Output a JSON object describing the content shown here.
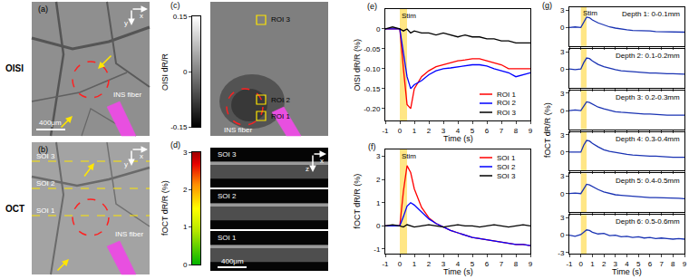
{
  "images": {
    "a": {
      "label": "(a)",
      "row_label": "OISI",
      "fiber": "INS fiber",
      "scale_bar": "400μm",
      "axes": [
        "x",
        "y"
      ]
    },
    "b": {
      "label": "(b)",
      "row_label": "OCT",
      "fiber": "INS fiber",
      "axes": [
        "x",
        "y"
      ],
      "lines": [
        "SOI 1",
        "SOI 2",
        "SOI 3"
      ]
    },
    "c": {
      "label": "(c)",
      "fiber": "INS fiber",
      "rois": [
        "ROI 1",
        "ROI 2",
        "ROI 3"
      ],
      "colorbar": {
        "title": "OISI dR/R",
        "range": [
          -0.15,
          0.15
        ],
        "ticks": [
          -0.15,
          0,
          0.15
        ]
      }
    },
    "d": {
      "label": "(d)",
      "sections": [
        "SOI 3",
        "SOI 2",
        "SOI 1"
      ],
      "scale_bar": "400μm",
      "axes": [
        "x",
        "z"
      ],
      "colorbar": {
        "title": "fOCT dR/R (%)",
        "range": [
          0,
          3
        ],
        "ticks": [
          0,
          1,
          2,
          3
        ]
      }
    }
  },
  "chart_data": [
    {
      "type": "line",
      "title": "(e)",
      "xlabel": "Time (s)",
      "ylabel": "OISI dR/R (%)",
      "x": [
        -1,
        -0.5,
        0,
        0.25,
        0.5,
        0.75,
        1,
        1.5,
        2,
        2.5,
        3,
        3.5,
        4,
        4.5,
        5,
        5.5,
        6,
        6.5,
        7,
        7.5,
        8,
        8.5,
        9
      ],
      "xlim": [
        -1,
        9
      ],
      "xticks": [
        -1,
        0,
        1,
        2,
        3,
        4,
        5,
        6,
        7,
        8,
        9
      ],
      "ylim": [
        -0.23,
        0.05
      ],
      "yticks": [
        0,
        -0.05,
        {
          "value": -0.1,
          "label": "-0.10"
        },
        -0.15,
        {
          "value": -0.2,
          "label": "-0.20"
        }
      ],
      "legend": "lower right",
      "annotations": [
        {
          "text": "Stim",
          "x": [
            0,
            0.5
          ]
        }
      ],
      "series": [
        {
          "name": "ROI 1",
          "color": "#ff0000",
          "values": [
            0,
            0,
            0,
            -0.1,
            -0.19,
            -0.2,
            -0.15,
            -0.12,
            -0.105,
            -0.095,
            -0.09,
            -0.085,
            -0.08,
            -0.078,
            -0.075,
            -0.075,
            -0.08,
            -0.085,
            -0.09,
            -0.1,
            -0.1,
            -0.1,
            -0.1
          ]
        },
        {
          "name": "ROI 2",
          "color": "#0000ff",
          "values": [
            0,
            0,
            0,
            -0.06,
            -0.12,
            -0.15,
            -0.14,
            -0.13,
            -0.115,
            -0.105,
            -0.1,
            -0.098,
            -0.095,
            -0.092,
            -0.09,
            -0.09,
            -0.093,
            -0.1,
            -0.105,
            -0.11,
            -0.12,
            -0.115,
            -0.11
          ]
        },
        {
          "name": "ROI 3",
          "color": "#000000",
          "values": [
            0,
            0.005,
            0,
            -0.005,
            0,
            -0.01,
            -0.005,
            -0.01,
            -0.01,
            -0.015,
            -0.01,
            -0.015,
            -0.02,
            -0.015,
            -0.02,
            -0.02,
            -0.025,
            -0.025,
            -0.03,
            -0.03,
            -0.035,
            -0.035,
            -0.035
          ]
        }
      ]
    },
    {
      "type": "line",
      "title": "(f)",
      "xlabel": "Time (s)",
      "ylabel": "fOCT dR/R (%)",
      "x": [
        -1,
        -0.5,
        0,
        0.25,
        0.5,
        0.75,
        1,
        1.5,
        2,
        2.5,
        3,
        3.5,
        4,
        4.5,
        5,
        5.5,
        6,
        6.5,
        7,
        7.5,
        8,
        8.5,
        9
      ],
      "xlim": [
        -1,
        9
      ],
      "xticks": [
        -1,
        0,
        1,
        2,
        3,
        4,
        5,
        6,
        7,
        8,
        9
      ],
      "ylim": [
        -1.2,
        3.3
      ],
      "yticks": [
        -1,
        0,
        1,
        2,
        3
      ],
      "legend": "upper right",
      "annotations": [
        {
          "text": "Stim",
          "x": [
            0,
            0.5
          ]
        }
      ],
      "series": [
        {
          "name": "SOI 1",
          "color": "#ff0000",
          "values": [
            0,
            0,
            0,
            1.5,
            2.6,
            2.3,
            1.6,
            0.8,
            0.35,
            0.1,
            -0.05,
            -0.2,
            -0.3,
            -0.4,
            -0.5,
            -0.55,
            -0.6,
            -0.65,
            -0.7,
            -0.75,
            -0.8,
            -0.8,
            -0.85
          ]
        },
        {
          "name": "SOI 2",
          "color": "#0000ff",
          "values": [
            0,
            0,
            0,
            0.4,
            0.85,
            1.0,
            0.9,
            0.6,
            0.3,
            0.1,
            -0.05,
            -0.2,
            -0.3,
            -0.4,
            -0.5,
            -0.55,
            -0.6,
            -0.65,
            -0.7,
            -0.75,
            -0.8,
            -0.8,
            -0.85
          ]
        },
        {
          "name": "SOI 3",
          "color": "#000000",
          "values": [
            0,
            0.05,
            0,
            -0.05,
            0.05,
            0,
            -0.05,
            0,
            0.05,
            0,
            -0.05,
            0,
            0.05,
            0,
            0,
            -0.05,
            0,
            0.05,
            0,
            -0.05,
            0,
            0.05,
            0
          ]
        }
      ]
    },
    {
      "type": "small_multiples",
      "title": "(g)",
      "xlabel": "Time (s)",
      "ylabel": "fOCT dR/R (%)",
      "x": [
        -1,
        -0.5,
        0,
        0.25,
        0.5,
        0.75,
        1,
        1.5,
        2,
        2.5,
        3,
        3.5,
        4,
        4.5,
        5,
        5.5,
        6,
        6.5,
        7,
        7.5,
        8,
        8.5,
        9
      ],
      "xlim": [
        -1,
        9
      ],
      "xticks": [
        -1,
        0,
        1,
        2,
        3,
        4,
        5,
        6,
        7,
        8,
        9
      ],
      "ylim": [
        -3.2,
        3.5
      ],
      "annotations": [
        {
          "text": "Stim",
          "x": [
            0,
            0.5
          ]
        }
      ],
      "series": [
        {
          "name": "Depth 1: 0-0.1mm",
          "color": "#1a33b3",
          "yticks": [
            0,
            3
          ],
          "values": [
            0,
            0.1,
            0,
            1.0,
            1.8,
            1.7,
            1.3,
            0.8,
            0.4,
            0.1,
            -0.1,
            -0.3,
            -0.4,
            -0.5,
            -0.5,
            -0.6,
            -0.6,
            -0.7,
            -0.7,
            -0.7,
            -0.8,
            -0.8,
            -0.8
          ]
        },
        {
          "name": "Depth 2: 0.1-0.2mm",
          "color": "#1a33b3",
          "yticks": [
            0,
            3
          ],
          "values": [
            0,
            -0.1,
            0,
            1.1,
            1.9,
            1.8,
            1.4,
            0.8,
            0.4,
            0.1,
            -0.1,
            -0.3,
            -0.4,
            -0.5,
            -0.6,
            -0.6,
            -0.7,
            -0.7,
            -0.8,
            -0.8,
            -0.8,
            -0.9,
            -0.9
          ]
        },
        {
          "name": "Depth 3: 0.2-0.3mm",
          "color": "#1a33b3",
          "yticks": [
            0,
            3
          ],
          "values": [
            0,
            0.1,
            0,
            0.8,
            1.5,
            1.4,
            1.1,
            0.6,
            0.3,
            0,
            -0.2,
            -0.3,
            -0.4,
            -0.5,
            -0.5,
            -0.6,
            -0.6,
            -0.7,
            -0.7,
            -0.8,
            -0.8,
            -0.8,
            -0.8
          ]
        },
        {
          "name": "Depth 4: 0.3-0.4mm",
          "color": "#1a33b3",
          "yticks": [
            0,
            3
          ],
          "values": [
            0,
            0,
            0,
            1.2,
            2.0,
            1.9,
            1.5,
            0.9,
            0.4,
            0.1,
            -0.1,
            -0.3,
            -0.4,
            -0.5,
            -0.6,
            -0.6,
            -0.7,
            -0.7,
            -0.8,
            -0.8,
            -0.9,
            -0.9,
            -0.9
          ]
        },
        {
          "name": "Depth 5: 0.4-0.5mm",
          "color": "#1a33b3",
          "yticks": [
            0,
            3
          ],
          "values": [
            0,
            0.1,
            0,
            0.9,
            1.6,
            1.5,
            1.2,
            0.7,
            0.3,
            0,
            -0.2,
            -0.3,
            -0.4,
            -0.5,
            -0.5,
            -0.6,
            -0.7,
            -0.7,
            -0.7,
            -0.8,
            -0.8,
            -0.8,
            -0.9
          ]
        },
        {
          "name": "Depth 6: 0.5-0.6mm",
          "color": "#1a33b3",
          "yticks": [
            -3,
            0,
            3
          ],
          "values": [
            0,
            -0.2,
            0.1,
            0.5,
            0.9,
            0.8,
            0.5,
            0.2,
            0.3,
            -0.1,
            0,
            -0.3,
            -0.2,
            -0.4,
            -0.3,
            -0.5,
            -0.4,
            -0.6,
            -0.5,
            -0.6,
            -0.7,
            -0.6,
            -0.7
          ]
        }
      ]
    }
  ]
}
